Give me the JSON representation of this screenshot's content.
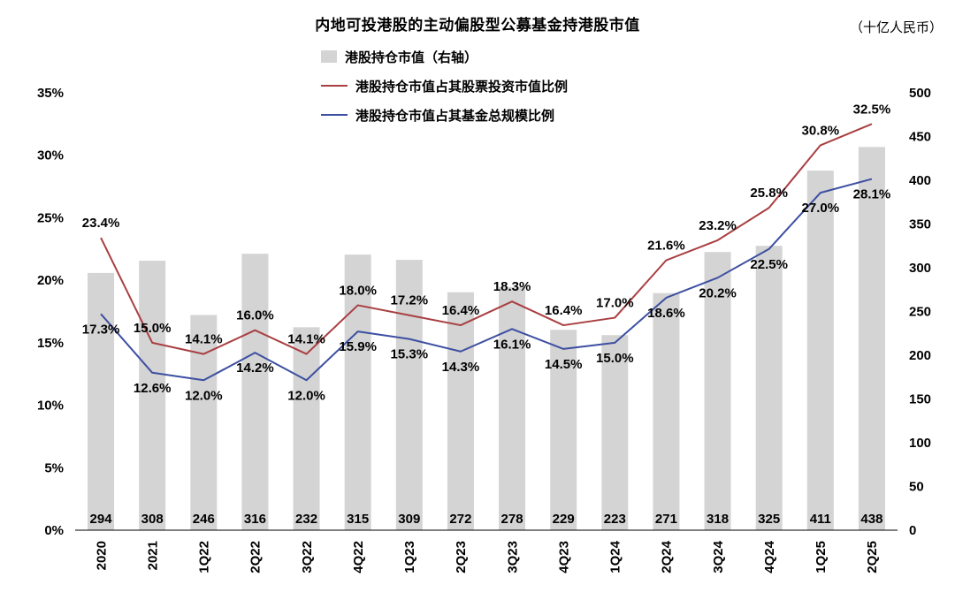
{
  "header": {
    "title": "内地可投港股的主动偏股型公募基金持港股市值",
    "unit": "（十亿人民币）"
  },
  "legend": [
    {
      "label": "港股持仓市值（右轴）",
      "type": "bar",
      "color": "#d4d4d4"
    },
    {
      "label": "港股持仓市值占其股票投资市值比例",
      "type": "line",
      "color": "#a93f42"
    },
    {
      "label": "港股持仓市值占其基金总规模比例",
      "type": "line",
      "color": "#3d4fa1"
    }
  ],
  "chart_data": {
    "type": "bar",
    "subtype": "combo-bar-line",
    "title": "内地可投港股的主动偏股型公募基金持港股市值",
    "unit_right": "（十亿人民币）",
    "categories": [
      "2020",
      "2021",
      "1Q22",
      "2Q22",
      "3Q22",
      "4Q22",
      "1Q23",
      "2Q23",
      "3Q23",
      "4Q23",
      "1Q24",
      "2Q24",
      "3Q24",
      "4Q24",
      "1Q25",
      "2Q25"
    ],
    "series": [
      {
        "name": "港股持仓市值（右轴）",
        "type": "bar",
        "axis": "right",
        "color": "#d4d4d4",
        "values": [
          294,
          308,
          246,
          316,
          232,
          315,
          309,
          272,
          278,
          229,
          223,
          271,
          318,
          325,
          411,
          438
        ]
      },
      {
        "name": "港股持仓市值占其股票投资市值比例",
        "type": "line",
        "axis": "left",
        "color": "#a93f42",
        "label_position": "above",
        "label_suffix": "%",
        "values": [
          23.4,
          15.0,
          14.1,
          16.0,
          14.1,
          18.0,
          17.2,
          16.4,
          18.3,
          16.4,
          17.0,
          21.6,
          23.2,
          25.8,
          30.8,
          32.5
        ]
      },
      {
        "name": "港股持仓市值占其基金总规模比例",
        "type": "line",
        "axis": "left",
        "color": "#3d4fa1",
        "label_position": "below",
        "label_suffix": "%",
        "values": [
          17.3,
          12.6,
          12.0,
          14.2,
          12.0,
          15.9,
          15.3,
          14.3,
          16.1,
          14.5,
          15.0,
          18.6,
          20.2,
          22.5,
          27.0,
          28.1
        ]
      }
    ],
    "left_axis": {
      "min": 0,
      "max": 35,
      "step": 5,
      "suffix": "%",
      "ticks": [
        "0%",
        "5%",
        "10%",
        "15%",
        "20%",
        "25%",
        "30%",
        "35%"
      ]
    },
    "right_axis": {
      "min": 0,
      "max": 500,
      "step": 50,
      "ticks": [
        "0",
        "50",
        "100",
        "150",
        "200",
        "250",
        "300",
        "350",
        "400",
        "450",
        "500"
      ]
    },
    "grid": false,
    "legend_position": "top-left-stacked"
  }
}
